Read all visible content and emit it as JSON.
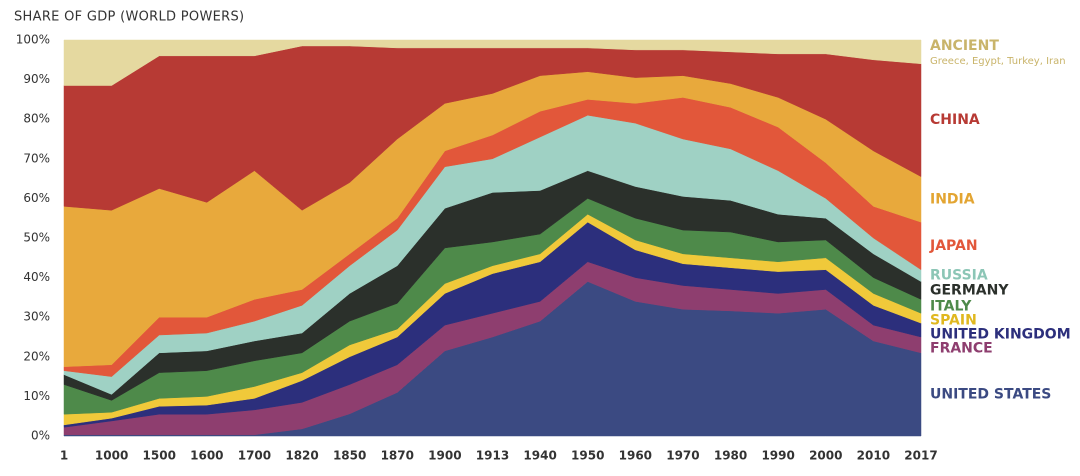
{
  "chart_data": {
    "type": "stacked-area",
    "title": "SHARE OF GDP (WORLD POWERS)",
    "categories": [
      "1",
      "1000",
      "1500",
      "1600",
      "1700",
      "1820",
      "1850",
      "1870",
      "1900",
      "1913",
      "1940",
      "1950",
      "1960",
      "1970",
      "1980",
      "1990",
      "2000",
      "2010",
      "2017"
    ],
    "ylim": [
      0,
      100
    ],
    "yticks": [
      {
        "value": 0,
        "label": "0%"
      },
      {
        "value": 10,
        "label": "10%"
      },
      {
        "value": 20,
        "label": "20%"
      },
      {
        "value": 30,
        "label": "30%"
      },
      {
        "value": 40,
        "label": "40%"
      },
      {
        "value": 50,
        "label": "50%"
      },
      {
        "value": 60,
        "label": "60%"
      },
      {
        "value": 70,
        "label": "70%"
      },
      {
        "value": 80,
        "label": "80%"
      },
      {
        "value": 90,
        "label": "90%"
      },
      {
        "value": 100,
        "label": "100%"
      }
    ],
    "grid": false,
    "series": [
      {
        "name": "UNITED STATES",
        "color": "#3b4a82",
        "label_color": "#3b4a82",
        "values": [
          0.3,
          0.3,
          0.3,
          0.3,
          0.3,
          1.8,
          5.6,
          11,
          21.5,
          25,
          29,
          39,
          34,
          32,
          31.6,
          31,
          32,
          24,
          21
        ]
      },
      {
        "name": "FRANCE",
        "color": "#8e3e6f",
        "label_color": "#8e3e6f",
        "values": [
          1.9,
          3.5,
          5.2,
          5.2,
          6.3,
          6.7,
          7.4,
          7,
          6.5,
          6,
          5,
          5,
          6,
          6,
          5.4,
          5,
          5,
          4,
          4
        ]
      },
      {
        "name": "UNITED KINGDOM",
        "color": "#2c2f7c",
        "label_color": "#2c2f7c",
        "values": [
          0.6,
          0.7,
          2,
          2.3,
          2.9,
          5.5,
          7,
          7,
          8,
          10,
          10,
          10,
          7,
          5.5,
          5.5,
          5.5,
          5,
          5,
          3.5
        ]
      },
      {
        "name": "SPAIN",
        "color": "#f0c93a",
        "label_color": "#e0b820",
        "values": [
          2.7,
          1.5,
          2,
          2.2,
          3,
          2,
          3,
          2,
          2.5,
          2,
          2,
          2,
          2.5,
          2.5,
          2.5,
          2.5,
          3,
          3,
          2.5
        ]
      },
      {
        "name": "ITALY",
        "color": "#4e8a4a",
        "label_color": "#4e8a4a",
        "values": [
          7.5,
          3,
          6.5,
          6.5,
          6.5,
          5,
          6,
          6.5,
          9,
          6,
          5,
          4,
          5.5,
          6,
          6.5,
          5,
          4.5,
          4,
          3.5
        ]
      },
      {
        "name": "GERMANY",
        "color": "#2b302b",
        "label_color": "#2b302b",
        "values": [
          2.5,
          1.5,
          5,
          5,
          5,
          5,
          7,
          9.5,
          10,
          12.5,
          11,
          7,
          8,
          8.5,
          8,
          7,
          5.5,
          6,
          4.5
        ]
      },
      {
        "name": "RUSSIA",
        "color": "#9fd1c4",
        "label_color": "#8cc6b6",
        "values": [
          1,
          4.5,
          4.5,
          4.5,
          5,
          7,
          7,
          9,
          10.5,
          8.5,
          13.5,
          14,
          16,
          14.5,
          13,
          11,
          5,
          4,
          3
        ]
      },
      {
        "name": "JAPAN",
        "color": "#e2573a",
        "label_color": "#e2573a",
        "values": [
          1,
          3,
          4.5,
          4,
          5.5,
          4,
          3,
          3,
          4,
          6,
          6.5,
          4,
          5,
          10.5,
          10.5,
          11,
          9,
          8,
          12
        ]
      },
      {
        "name": "INDIA",
        "color": "#e8a93c",
        "label_color": "#e3a532",
        "values": [
          40.5,
          39,
          32.5,
          29,
          32.5,
          20,
          18,
          20,
          12,
          10.5,
          9,
          7,
          6.5,
          5.5,
          6,
          7.5,
          11,
          14,
          11.5
        ]
      },
      {
        "name": "CHINA",
        "color": "#b73a34",
        "label_color": "#b73a34",
        "values": [
          30.5,
          31.5,
          33.5,
          37,
          29,
          41.5,
          34.5,
          23,
          14,
          11.5,
          7,
          6,
          7,
          6.5,
          8,
          11,
          16.5,
          23,
          28.5
        ]
      },
      {
        "name": "ANCIENT",
        "description": "Greece, Egypt, Turkey, Iran",
        "color": "#e5d9a0",
        "label_color": "#c9b46a",
        "values": [
          11.5,
          11.5,
          4,
          4,
          4,
          1.5,
          1.5,
          2,
          2,
          2,
          2,
          2,
          2.5,
          2.5,
          3,
          3.5,
          3.5,
          5,
          6
        ]
      }
    ]
  }
}
